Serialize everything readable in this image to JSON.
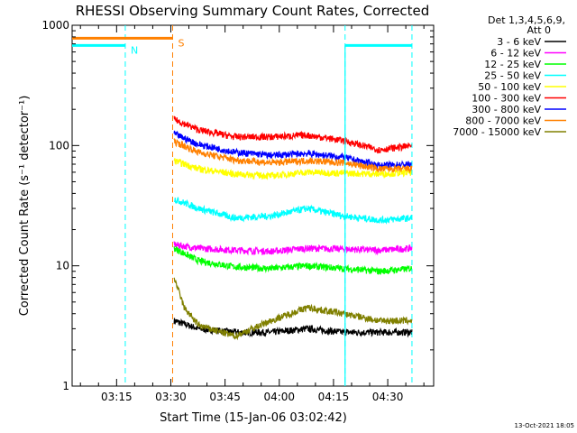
{
  "chart_data": {
    "type": "line",
    "title": "RHESSI Observing Summary Count Rates, Corrected",
    "xlabel": "Start Time (15-Jan-06 03:02:42)",
    "ylabel": "Corrected Count Rate (s⁻¹ detector⁻¹)",
    "ylog": true,
    "ylim": [
      1,
      1000
    ],
    "xlim_minutes": [
      0,
      100
    ],
    "x_ticks": [
      {
        "minute": 12.3,
        "label": "03:15"
      },
      {
        "minute": 27.3,
        "label": "03:30"
      },
      {
        "minute": 42.3,
        "label": "03:45"
      },
      {
        "minute": 57.3,
        "label": "04:00"
      },
      {
        "minute": 72.3,
        "label": "04:15"
      },
      {
        "minute": 87.3,
        "label": "04:30"
      }
    ],
    "y_ticks": [
      {
        "value": 1,
        "label": "1"
      },
      {
        "value": 10,
        "label": "10"
      },
      {
        "value": 100,
        "label": "100"
      },
      {
        "value": 1000,
        "label": "1000"
      }
    ],
    "legend_header": [
      "Det 1,3,4,5,6,9,",
      "Att 0"
    ],
    "series": [
      {
        "name": "3 - 6 keV",
        "color": "#000000",
        "points": [
          [
            28.2,
            3.5
          ],
          [
            35,
            3.0
          ],
          [
            45,
            2.8
          ],
          [
            55,
            2.8
          ],
          [
            65,
            3.0
          ],
          [
            75,
            2.8
          ],
          [
            85,
            2.8
          ],
          [
            94,
            2.8
          ]
        ]
      },
      {
        "name": "6 - 12 keV",
        "color": "#ff00ff",
        "points": [
          [
            28.2,
            15
          ],
          [
            35,
            14
          ],
          [
            45,
            13.5
          ],
          [
            55,
            13.2
          ],
          [
            65,
            14
          ],
          [
            75,
            13.8
          ],
          [
            85,
            13.5
          ],
          [
            94,
            14
          ]
        ]
      },
      {
        "name": "12 - 25 keV",
        "color": "#00ff00",
        "points": [
          [
            28.2,
            14
          ],
          [
            35,
            11
          ],
          [
            45,
            9.8
          ],
          [
            55,
            9.5
          ],
          [
            65,
            10
          ],
          [
            75,
            9.5
          ],
          [
            85,
            9.0
          ],
          [
            94,
            9.5
          ]
        ]
      },
      {
        "name": "25 - 50 keV",
        "color": "#00ffff",
        "points": [
          [
            28.2,
            36
          ],
          [
            35,
            30
          ],
          [
            45,
            25
          ],
          [
            55,
            26
          ],
          [
            65,
            30
          ],
          [
            75,
            26
          ],
          [
            85,
            24
          ],
          [
            94,
            25
          ]
        ]
      },
      {
        "name": "50 - 100 keV",
        "color": "#ffff00",
        "points": [
          [
            28.2,
            75
          ],
          [
            35,
            64
          ],
          [
            45,
            58
          ],
          [
            55,
            56
          ],
          [
            65,
            60
          ],
          [
            75,
            59
          ],
          [
            85,
            58
          ],
          [
            94,
            60
          ]
        ]
      },
      {
        "name": "100 - 300 keV",
        "color": "#ff0000",
        "points": [
          [
            28.2,
            165
          ],
          [
            35,
            135
          ],
          [
            45,
            118
          ],
          [
            55,
            118
          ],
          [
            65,
            122
          ],
          [
            75,
            110
          ],
          [
            85,
            92
          ],
          [
            94,
            100
          ]
        ]
      },
      {
        "name": "300 - 800 keV",
        "color": "#0000ff",
        "points": [
          [
            28.2,
            125
          ],
          [
            35,
            102
          ],
          [
            45,
            88
          ],
          [
            55,
            83
          ],
          [
            65,
            86
          ],
          [
            75,
            80
          ],
          [
            85,
            68
          ],
          [
            94,
            70
          ]
        ]
      },
      {
        "name": "800 - 7000 keV",
        "color": "#ff8000",
        "points": [
          [
            28.2,
            108
          ],
          [
            35,
            88
          ],
          [
            45,
            76
          ],
          [
            55,
            72
          ],
          [
            65,
            75
          ],
          [
            75,
            72
          ],
          [
            85,
            64
          ],
          [
            94,
            64
          ]
        ]
      },
      {
        "name": "7000 - 15000 keV",
        "color": "#808000",
        "points": [
          [
            28.2,
            8
          ],
          [
            31,
            4.5
          ],
          [
            35,
            3.2
          ],
          [
            45,
            2.6
          ],
          [
            55,
            3.5
          ],
          [
            65,
            4.5
          ],
          [
            75,
            4.0
          ],
          [
            85,
            3.5
          ],
          [
            94,
            3.5
          ]
        ]
      }
    ],
    "flags": [
      {
        "label": "N",
        "color": "#00ffff",
        "level": 680,
        "segments": [
          [
            0,
            14.7
          ],
          [
            75.5,
            94
          ]
        ],
        "transitions": [
          14.7,
          75.5,
          94
        ]
      },
      {
        "label": "S",
        "color": "#ff8000",
        "level": 780,
        "segments": [
          [
            0,
            27.8
          ]
        ],
        "transitions": [
          27.8
        ]
      }
    ],
    "timestamp": "13-Oct-2021 18:05"
  },
  "colors": {
    "background": "#ffffff",
    "axes": "#000000"
  }
}
